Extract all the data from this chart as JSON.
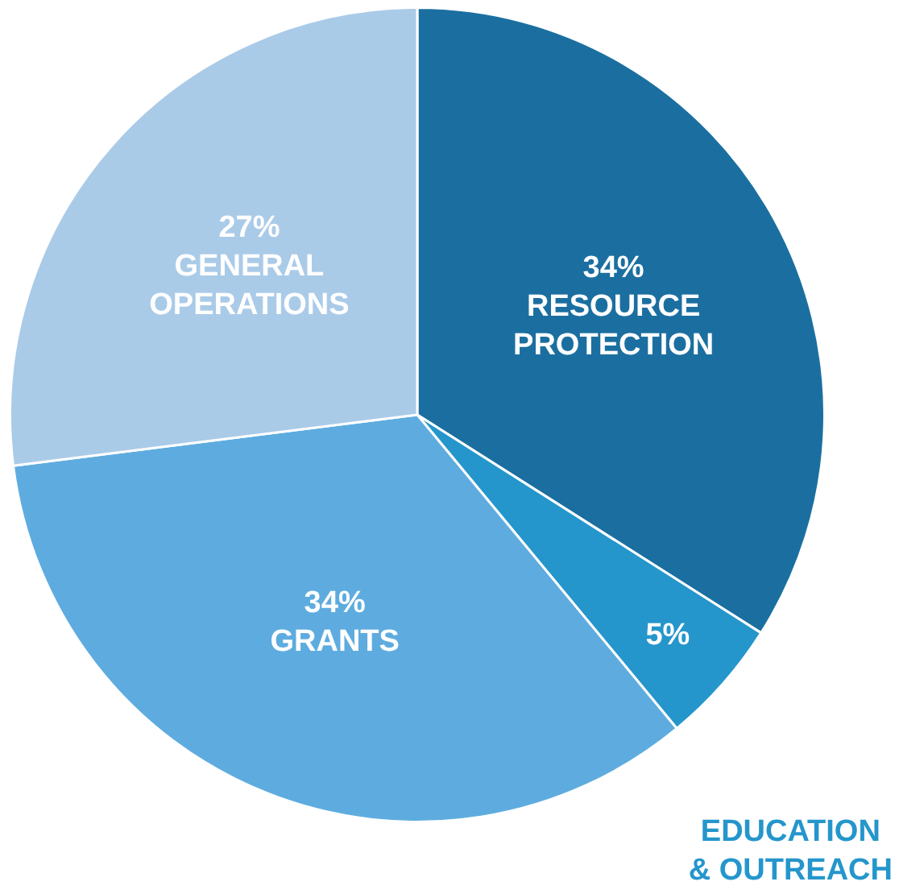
{
  "chart_data": {
    "type": "pie",
    "categories": [
      "RESOURCE PROTECTION",
      "EDUCATION & OUTREACH",
      "GRANTS",
      "GENERAL OPERATIONS"
    ],
    "values": [
      34,
      5,
      34,
      27
    ],
    "colors": [
      "#1b6fa0",
      "#2596cc",
      "#5eacdf",
      "#aacbe8"
    ],
    "value_labels": [
      "34%",
      "5%",
      "34%",
      "27%"
    ],
    "legend": false
  }
}
